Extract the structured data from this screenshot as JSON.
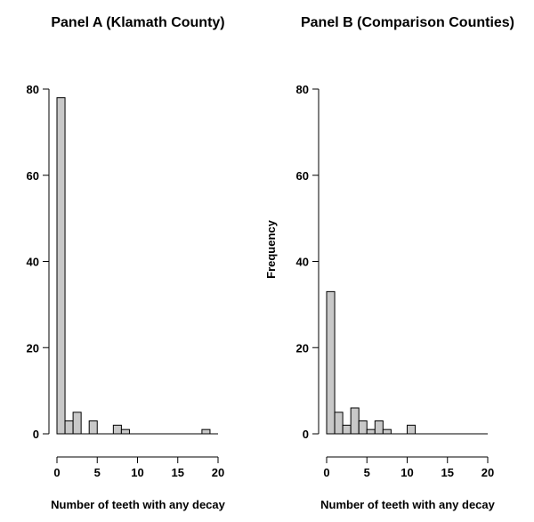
{
  "chart_data": [
    {
      "type": "bar",
      "title": "Panel A (Klamath County)",
      "xlabel": "Number of teeth with any decay",
      "ylabel": "",
      "bin_width": 1,
      "bin_starts": [
        0,
        1,
        2,
        3,
        4,
        5,
        6,
        7,
        8,
        9,
        10,
        11,
        12,
        13,
        14,
        15,
        16,
        17,
        18,
        19
      ],
      "values": [
        78,
        3,
        5,
        0,
        3,
        0,
        0,
        2,
        1,
        0,
        0,
        0,
        0,
        0,
        0,
        0,
        0,
        0,
        1,
        0
      ],
      "xlim": [
        0,
        20
      ],
      "ylim": [
        0,
        80
      ],
      "xticks": [
        0,
        5,
        10,
        15,
        20
      ],
      "yticks": [
        0,
        20,
        40,
        60,
        80
      ]
    },
    {
      "type": "bar",
      "title": "Panel B (Comparison Counties)",
      "xlabel": "Number of teeth with any decay",
      "ylabel": "Frequency",
      "bin_width": 1,
      "bin_starts": [
        0,
        1,
        2,
        3,
        4,
        5,
        6,
        7,
        8,
        9,
        10,
        11,
        12,
        13,
        14,
        15,
        16,
        17,
        18,
        19
      ],
      "values": [
        33,
        5,
        2,
        6,
        3,
        1,
        3,
        1,
        0,
        0,
        2,
        0,
        0,
        0,
        0,
        0,
        0,
        0,
        0,
        0
      ],
      "xlim": [
        0,
        20
      ],
      "ylim": [
        0,
        80
      ],
      "xticks": [
        0,
        5,
        10,
        15,
        20
      ],
      "yticks": [
        0,
        20,
        40,
        60,
        80
      ]
    }
  ]
}
